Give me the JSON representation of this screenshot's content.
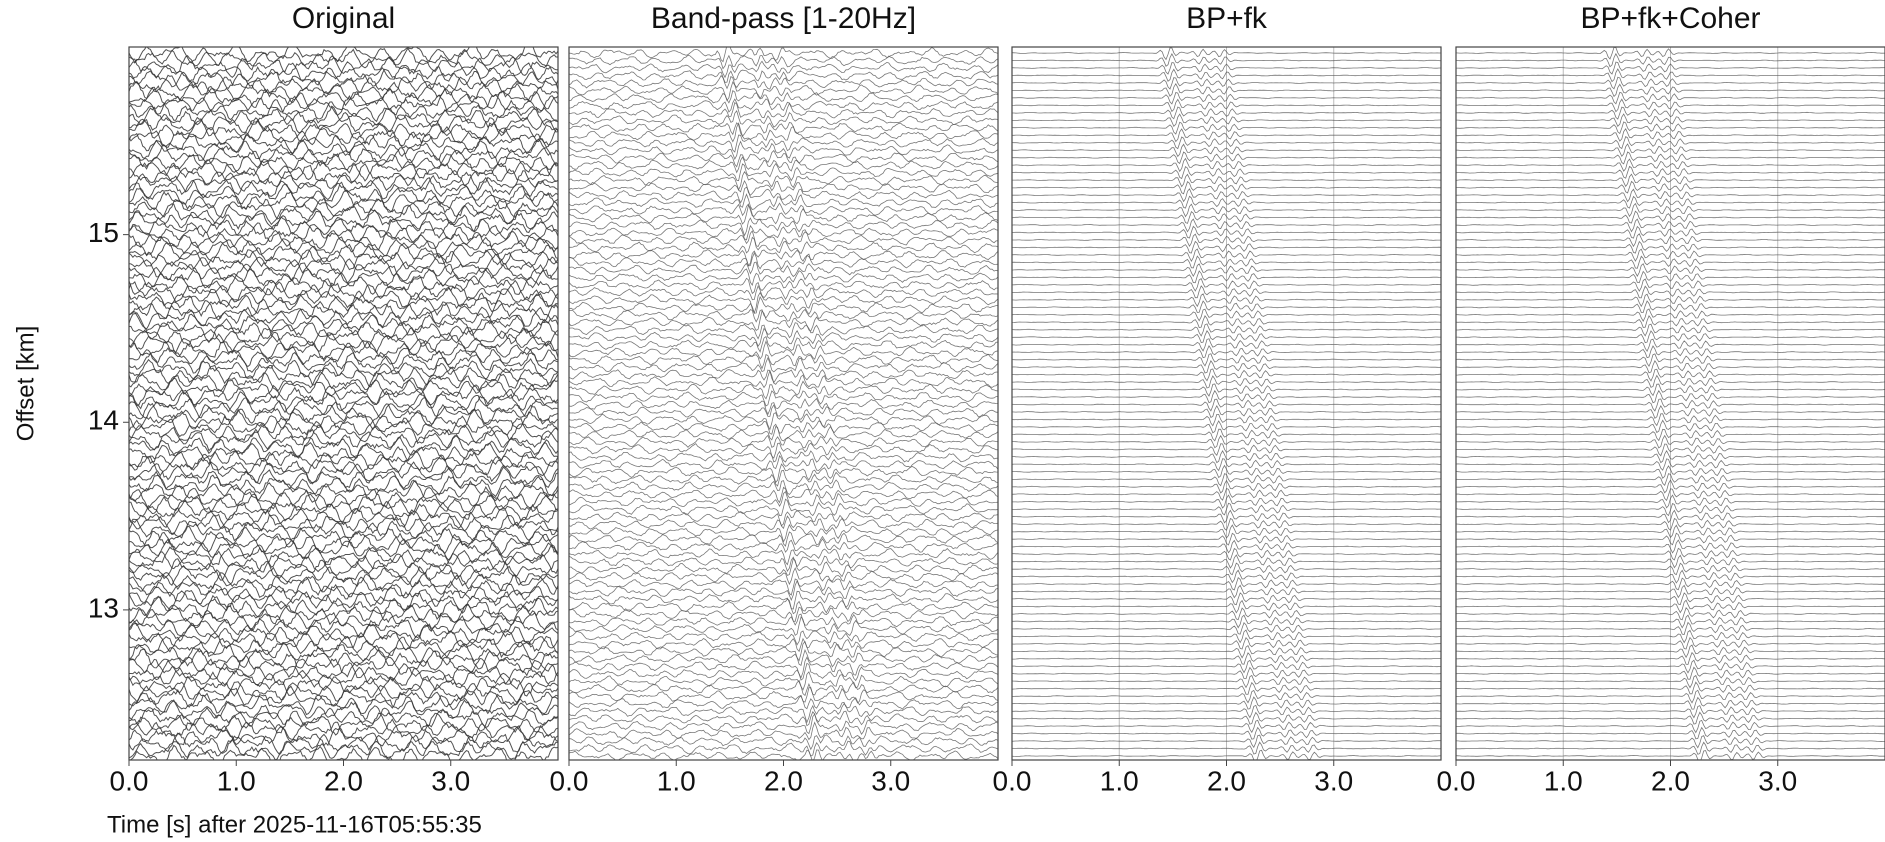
{
  "chart_data": [
    {
      "type": "wiggle",
      "title": "Original",
      "xlabel": "Time [s] after 2025-11-16T05:55:35",
      "ylabel": "Offset [km]",
      "xlim": [
        0,
        4
      ],
      "xticks": [
        {
          "value": 0,
          "label": "0.0"
        },
        {
          "value": 1,
          "label": "1.0"
        },
        {
          "value": 2,
          "label": "2.0"
        },
        {
          "value": 3,
          "label": "3.0"
        }
      ],
      "ylim": [
        12.2,
        16.0
      ],
      "yticks": [
        13,
        14,
        15
      ],
      "grid": false
    },
    {
      "type": "wiggle",
      "title": "Band-pass [1-20Hz]",
      "xlim": [
        0,
        4
      ],
      "xticks": [
        {
          "value": 0,
          "label": "0.0"
        },
        {
          "value": 1,
          "label": "1.0"
        },
        {
          "value": 2,
          "label": "2.0"
        },
        {
          "value": 3,
          "label": "3.0"
        }
      ],
      "ylim": [
        12.2,
        16.0
      ],
      "grid": false
    },
    {
      "type": "wiggle",
      "title": "BP+fk",
      "xlim": [
        0,
        4
      ],
      "xticks": [
        {
          "value": 0,
          "label": "0.0"
        },
        {
          "value": 1,
          "label": "1.0"
        },
        {
          "value": 2,
          "label": "2.0"
        },
        {
          "value": 3,
          "label": "3.0"
        }
      ],
      "ylim": [
        12.2,
        16.0
      ],
      "grid": true
    },
    {
      "type": "wiggle",
      "title": "BP+fk+Coher",
      "xlim": [
        0,
        4
      ],
      "xticks": [
        {
          "value": 0,
          "label": "0.0"
        },
        {
          "value": 1,
          "label": "1.0"
        },
        {
          "value": 2,
          "label": "2.0"
        },
        {
          "value": 3,
          "label": "3.0"
        }
      ],
      "ylim": [
        12.2,
        16.0
      ],
      "grid": true
    }
  ]
}
